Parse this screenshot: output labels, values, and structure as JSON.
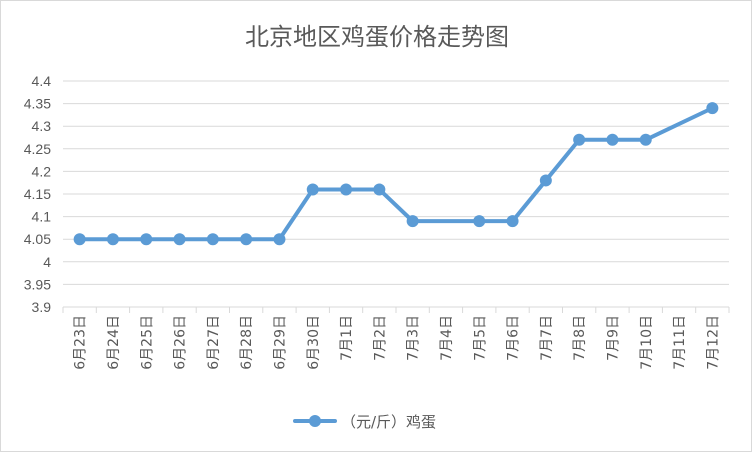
{
  "chart_data": {
    "type": "line",
    "title": "北京地区鸡蛋价格走势图",
    "categories": [
      "6月23日",
      "6月24日",
      "6月25日",
      "6月26日",
      "6月27日",
      "6月28日",
      "6月29日",
      "6月30日",
      "7月1日",
      "7月2日",
      "7月3日",
      "7月4日",
      "7月5日",
      "7月6日",
      "7月7日",
      "7月8日",
      "7月9日",
      "7月10日",
      "7月11日",
      "7月12日"
    ],
    "series": [
      {
        "name": "（元/斤）鸡蛋",
        "color": "#5b9bd5",
        "values": [
          4.05,
          4.05,
          4.05,
          4.05,
          4.05,
          4.05,
          4.05,
          4.16,
          4.16,
          4.16,
          4.09,
          null,
          4.09,
          4.09,
          4.18,
          4.27,
          4.27,
          4.27,
          null,
          4.34
        ]
      }
    ],
    "ylim": [
      3.9,
      4.4
    ],
    "yticks": [
      "3.9",
      "3.95",
      "4",
      "4.05",
      "4.1",
      "4.15",
      "4.2",
      "4.25",
      "4.3",
      "4.35",
      "4.4"
    ],
    "grid": true,
    "legend_position": "bottom"
  }
}
